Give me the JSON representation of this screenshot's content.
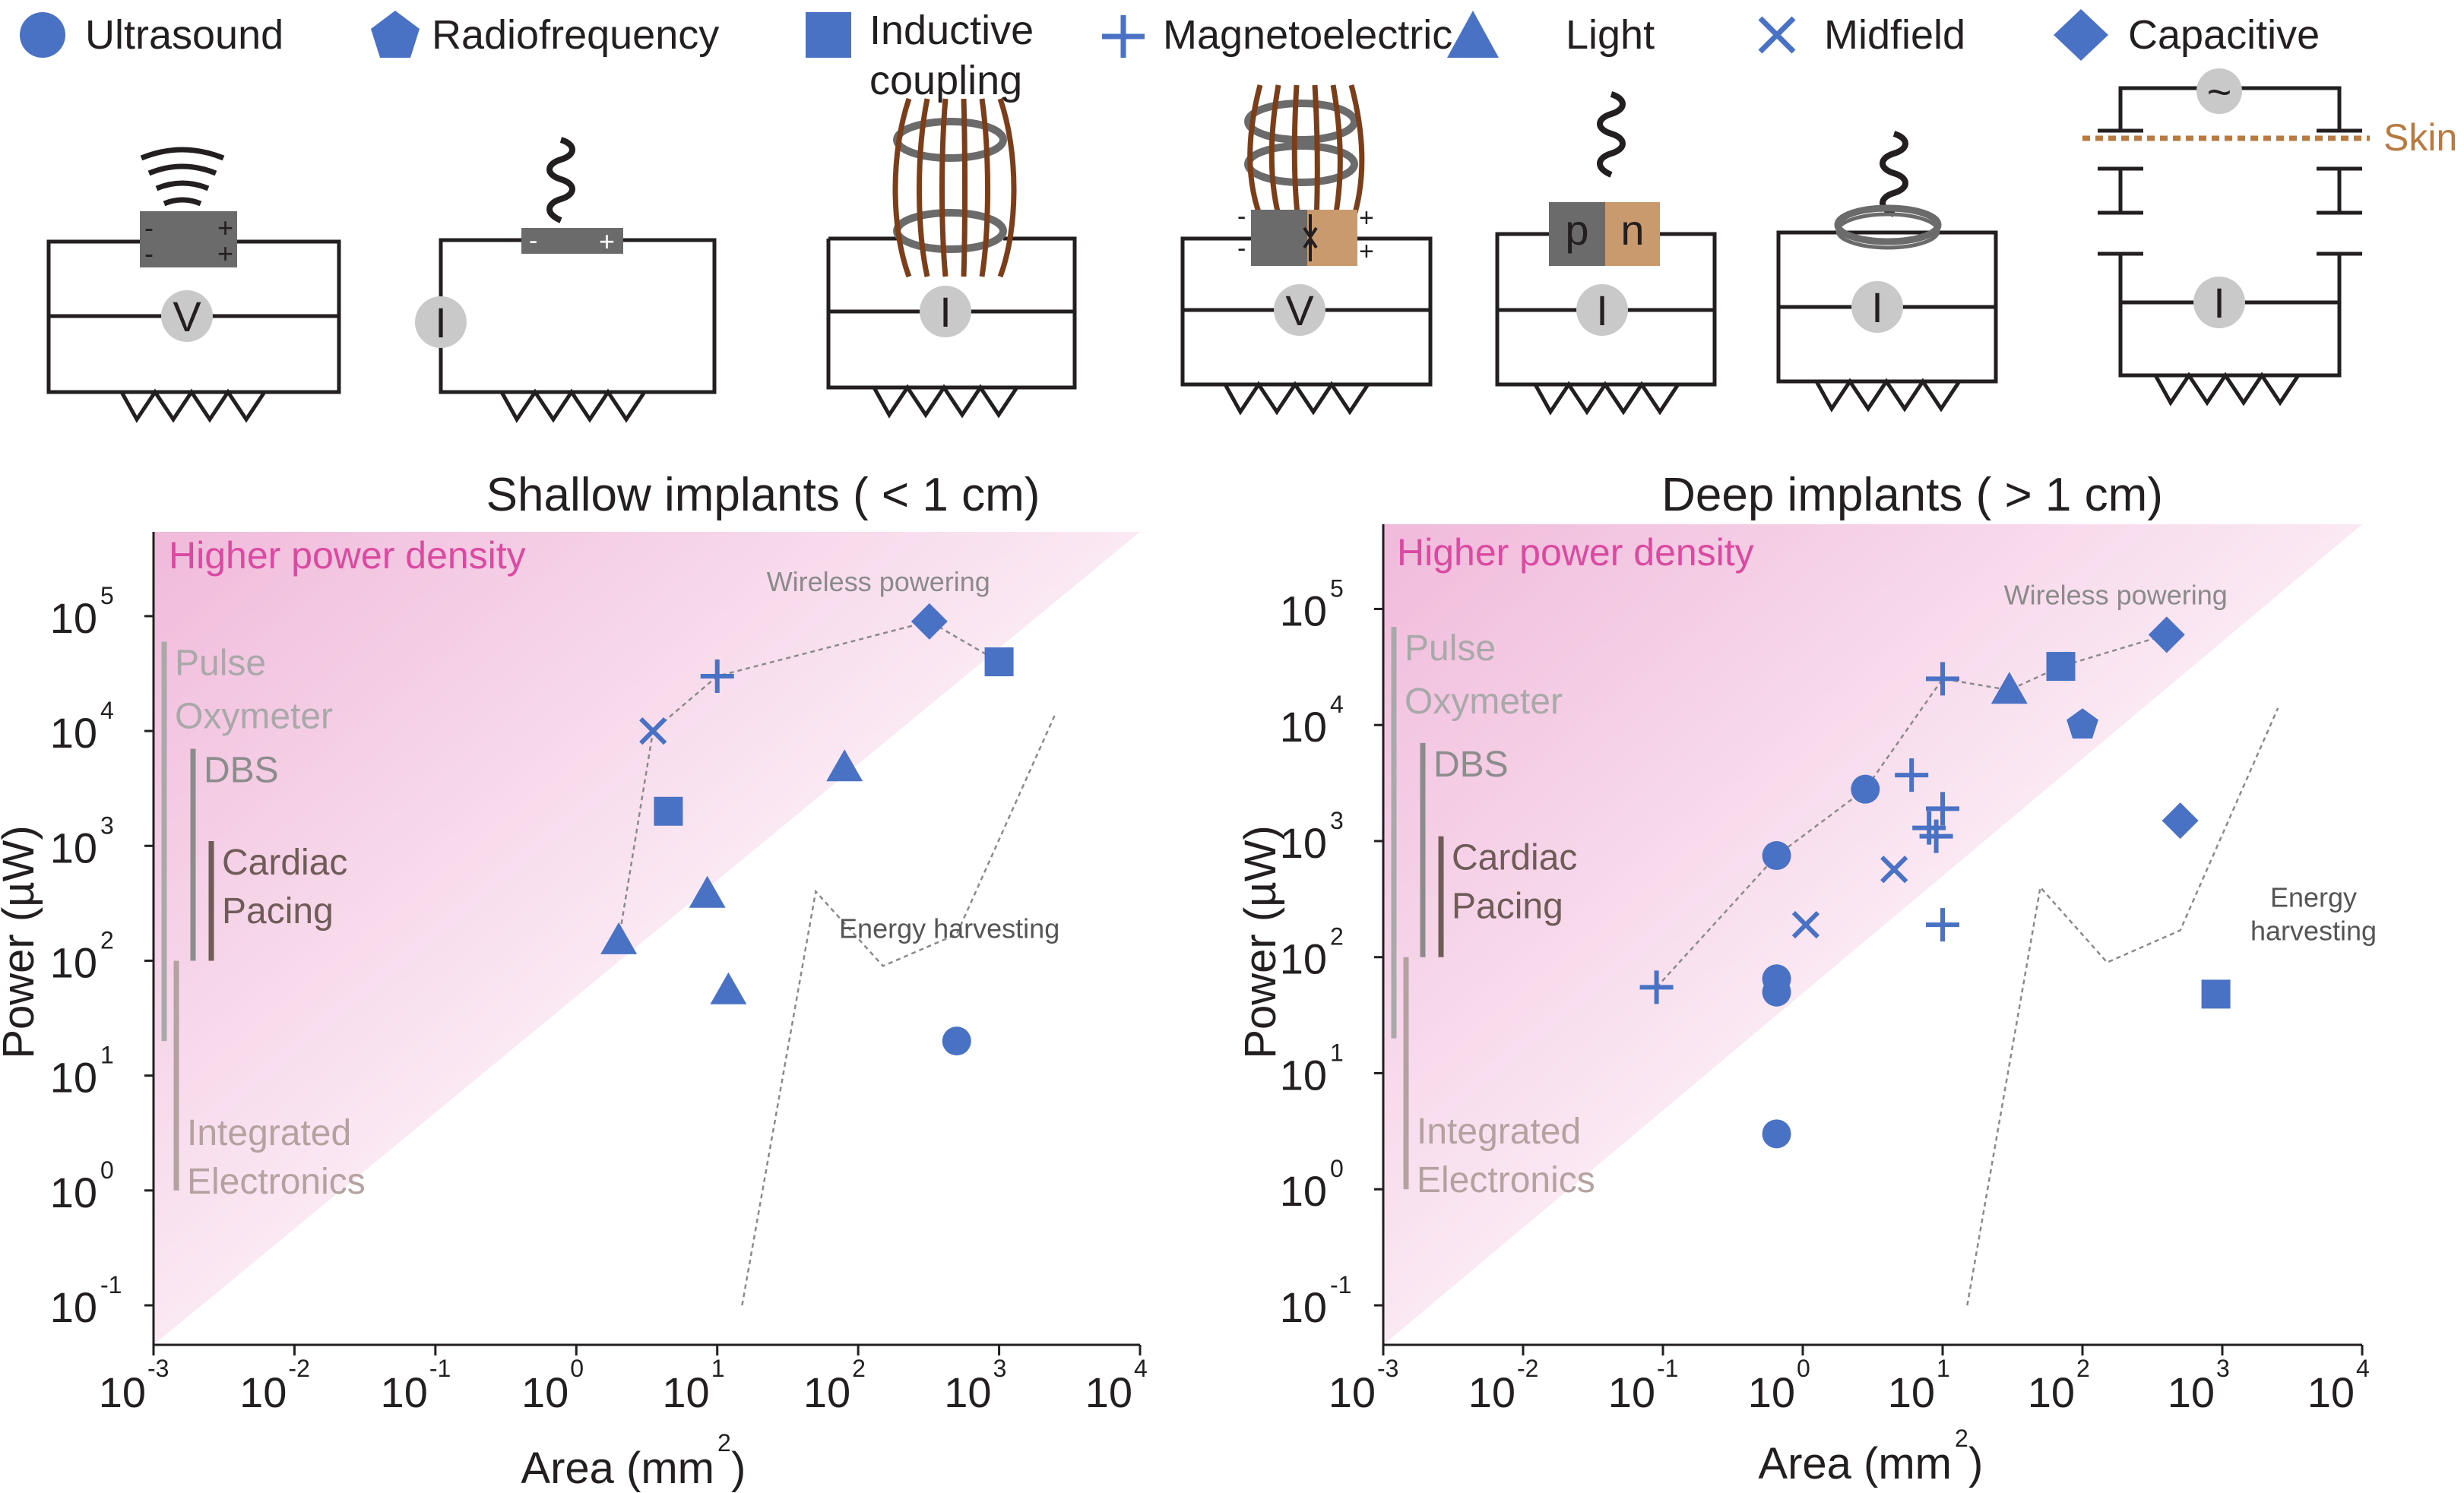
{
  "legend": [
    {
      "label": "Ultrasound",
      "marker": "circle"
    },
    {
      "label": "Radiofrequency",
      "marker": "pentagon"
    },
    {
      "label": "Inductive",
      "label2": "coupling",
      "marker": "square"
    },
    {
      "label": "Magnetoelectric",
      "marker": "plus"
    },
    {
      "label": "Light",
      "marker": "triangle"
    },
    {
      "label": "Midfield",
      "marker": "cross"
    },
    {
      "label": "Capacitive",
      "marker": "diamond"
    }
  ],
  "circuits": {
    "meters": [
      "V",
      "I",
      "I",
      "V",
      "I",
      "I",
      "I"
    ],
    "pn_labels": [
      "p",
      "n"
    ],
    "plus_sign": "+",
    "minus_sign": "-",
    "ac_symbol": "~",
    "skin_label": "Skin"
  },
  "colors": {
    "marker": "#4a72c4",
    "gradient": "#d94aa0",
    "skin": "#b87a40",
    "coil_copper": "#7a3f1a"
  },
  "chart_data": [
    {
      "type": "scatter",
      "title": "Shallow implants ( < 1 cm)",
      "xlabel": "Area (mm",
      "ylabel": "Power (µW)",
      "x_scale": "log",
      "y_scale": "log",
      "xlim": [
        0.001,
        10000
      ],
      "ylim": [
        0.1,
        500000
      ],
      "x_ticks": [
        "10^-3",
        "10^-2",
        "10^-1",
        "10^0",
        "10^1",
        "10^2",
        "10^3",
        "10^4"
      ],
      "y_ticks": [
        "10^-1",
        "10^0",
        "10^1",
        "10^2",
        "10^3",
        "10^4",
        "10^5"
      ],
      "gradient_label": "Higher power density",
      "range_bars": [
        {
          "label": [
            "Pulse",
            "Oxymeter"
          ],
          "min": 20,
          "max": 60000,
          "color": "#a9a9a9"
        },
        {
          "label": [
            "DBS"
          ],
          "min": 100,
          "max": 7000,
          "color": "#8c8c8c"
        },
        {
          "label": [
            "Cardiac",
            "Pacing"
          ],
          "min": 100,
          "max": 1100,
          "color": "#6f5b57"
        },
        {
          "label": [
            "Integrated",
            "Electronics"
          ],
          "min": 1,
          "max": 100,
          "color": "#b5a1a0"
        }
      ],
      "annotations": {
        "wireless": "Wireless powering",
        "harvesting": [
          "Energy harvesting"
        ]
      },
      "points": [
        {
          "marker": "triangle",
          "x": 2,
          "y": 150
        },
        {
          "marker": "cross",
          "x": 3.5,
          "y": 10000
        },
        {
          "marker": "plus",
          "x": 10,
          "y": 30000
        },
        {
          "marker": "diamond",
          "x": 320,
          "y": 90000
        },
        {
          "marker": "square",
          "x": 1000,
          "y": 40000
        },
        {
          "marker": "square",
          "x": 4.5,
          "y": 2000
        },
        {
          "marker": "triangle",
          "x": 8.5,
          "y": 380
        },
        {
          "marker": "triangle",
          "x": 12,
          "y": 55
        },
        {
          "marker": "triangle",
          "x": 80,
          "y": 4800
        },
        {
          "marker": "circle",
          "x": 500,
          "y": 20
        }
      ],
      "wireless_frontier": [
        [
          2,
          150
        ],
        [
          3.5,
          10000
        ],
        [
          10,
          30000
        ],
        [
          320,
          90000
        ],
        [
          1000,
          40000
        ]
      ],
      "harvesting_boundary": [
        [
          15,
          0.1
        ],
        [
          50,
          400
        ],
        [
          150,
          90
        ],
        [
          500,
          170
        ],
        [
          2500,
          14000
        ]
      ]
    },
    {
      "type": "scatter",
      "title": "Deep implants ( > 1 cm)",
      "xlabel": "Area (mm",
      "ylabel": "Power (µW)",
      "x_scale": "log",
      "y_scale": "log",
      "xlim": [
        0.001,
        10000
      ],
      "ylim": [
        0.1,
        500000
      ],
      "x_ticks": [
        "10^-3",
        "10^-2",
        "10^-1",
        "10^0",
        "10^1",
        "10^2",
        "10^3",
        "10^4"
      ],
      "y_ticks": [
        "10^-1",
        "10^0",
        "10^1",
        "10^2",
        "10^3",
        "10^4",
        "10^5"
      ],
      "gradient_label": "Higher power density",
      "range_bars": [
        {
          "label": [
            "Pulse",
            "Oxymeter"
          ],
          "min": 20,
          "max": 70000,
          "color": "#a9a9a9"
        },
        {
          "label": [
            "DBS"
          ],
          "min": 100,
          "max": 7000,
          "color": "#8c8c8c"
        },
        {
          "label": [
            "Cardiac",
            "Pacing"
          ],
          "min": 100,
          "max": 1100,
          "color": "#6f5b57"
        },
        {
          "label": [
            "Integrated",
            "Electronics"
          ],
          "min": 1,
          "max": 100,
          "color": "#b5a1a0"
        }
      ],
      "annotations": {
        "wireless": "Wireless powering",
        "harvesting": [
          "Energy",
          "harvesting"
        ]
      },
      "points": [
        {
          "marker": "plus",
          "x": 0.09,
          "y": 55
        },
        {
          "marker": "circle",
          "x": 0.65,
          "y": 750
        },
        {
          "marker": "circle",
          "x": 2.8,
          "y": 2800
        },
        {
          "marker": "plus",
          "x": 10,
          "y": 25000
        },
        {
          "marker": "triangle",
          "x": 30,
          "y": 20000
        },
        {
          "marker": "square",
          "x": 70,
          "y": 32000
        },
        {
          "marker": "diamond",
          "x": 400,
          "y": 60000
        },
        {
          "marker": "circle",
          "x": 0.65,
          "y": 65
        },
        {
          "marker": "circle",
          "x": 0.65,
          "y": 50
        },
        {
          "marker": "circle",
          "x": 0.65,
          "y": 3
        },
        {
          "marker": "cross",
          "x": 1.05,
          "y": 190
        },
        {
          "marker": "cross",
          "x": 4.5,
          "y": 570
        },
        {
          "marker": "plus",
          "x": 6,
          "y": 3700
        },
        {
          "marker": "plus",
          "x": 8,
          "y": 1300
        },
        {
          "marker": "plus",
          "x": 9,
          "y": 1100
        },
        {
          "marker": "plus",
          "x": 10,
          "y": 1900
        },
        {
          "marker": "plus",
          "x": 10,
          "y": 190
        },
        {
          "marker": "pentagon",
          "x": 100,
          "y": 10000
        },
        {
          "marker": "diamond",
          "x": 500,
          "y": 1500
        },
        {
          "marker": "square",
          "x": 900,
          "y": 48
        }
      ],
      "wireless_frontier": [
        [
          0.09,
          55
        ],
        [
          0.65,
          750
        ],
        [
          2.8,
          2800
        ],
        [
          10,
          25000
        ],
        [
          30,
          20000
        ],
        [
          70,
          32000
        ],
        [
          400,
          60000
        ]
      ],
      "harvesting_boundary": [
        [
          15,
          0.1
        ],
        [
          50,
          400
        ],
        [
          150,
          90
        ],
        [
          500,
          170
        ],
        [
          2500,
          14000
        ]
      ]
    }
  ]
}
